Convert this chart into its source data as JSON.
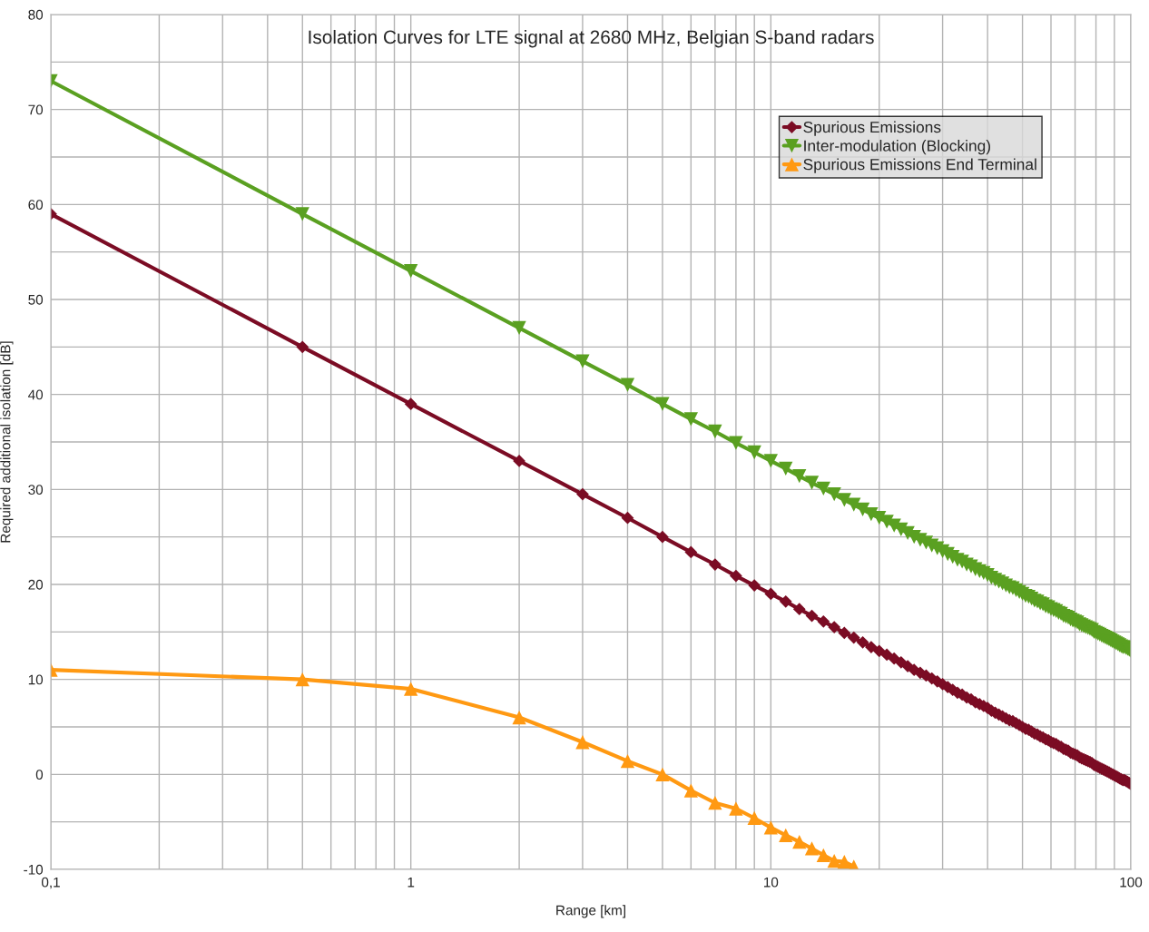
{
  "chart_data": {
    "type": "line",
    "title": "Isolation Curves for LTE signal at 2680 MHz, Belgian S-band radars",
    "xlabel": "Range [km]",
    "ylabel": "Required additional isolation [dB]",
    "log": "x",
    "xlim": [
      0.1,
      100
    ],
    "xticks": [
      {
        "value": 0.1,
        "label": "0,1"
      },
      {
        "value": 0.2,
        "label": null
      },
      {
        "value": 0.3,
        "label": null
      },
      {
        "value": 0.4,
        "label": null
      },
      {
        "value": 0.5,
        "label": null
      },
      {
        "value": 0.6,
        "label": null
      },
      {
        "value": 0.7,
        "label": null
      },
      {
        "value": 0.8,
        "label": null
      },
      {
        "value": 0.9,
        "label": null
      },
      1,
      {
        "value": 2,
        "label": null
      },
      {
        "value": 3,
        "label": null
      },
      {
        "value": 4,
        "label": null
      },
      {
        "value": 5,
        "label": null
      },
      {
        "value": 6,
        "label": null
      },
      {
        "value": 7,
        "label": null
      },
      {
        "value": 8,
        "label": null
      },
      {
        "value": 9,
        "label": null
      },
      10,
      {
        "value": 20,
        "label": null
      },
      {
        "value": 30,
        "label": null
      },
      {
        "value": 40,
        "label": null
      },
      {
        "value": 50,
        "label": null
      },
      {
        "value": 60,
        "label": null
      },
      {
        "value": 70,
        "label": null
      },
      {
        "value": 80,
        "label": null
      },
      {
        "value": 90,
        "label": null
      },
      100
    ],
    "ylim": [
      -10,
      80
    ],
    "yticks": [
      -10,
      {
        "value": -5,
        "label": null
      },
      0,
      {
        "value": 5,
        "label": null
      },
      10,
      {
        "value": 15,
        "label": null
      },
      20,
      {
        "value": 25,
        "label": null
      },
      30,
      {
        "value": 35,
        "label": null
      },
      40,
      {
        "value": 45,
        "label": null
      },
      50,
      {
        "value": 55,
        "label": null
      },
      60,
      {
        "value": 65,
        "label": null
      },
      70,
      {
        "value": 75,
        "label": null
      },
      80
    ],
    "grid": true,
    "legend": "top right",
    "line_style": "solid",
    "series": [
      {
        "name": "Spurious Emissions",
        "color": "#7b0c24",
        "marker": "diamond",
        "x": [
          0.1,
          0.5,
          1,
          2,
          3,
          4,
          5,
          6,
          7,
          8,
          9,
          10,
          11,
          12,
          13,
          14,
          15,
          16,
          17,
          18,
          19,
          20,
          21,
          22,
          23,
          24,
          25,
          26,
          27,
          28,
          29,
          30,
          31,
          32,
          33,
          34,
          35,
          36,
          37,
          38,
          39,
          40,
          41,
          42,
          43,
          44,
          45,
          46,
          47,
          48,
          49,
          50,
          51,
          52,
          53,
          54,
          55,
          56,
          57,
          58,
          59,
          60,
          61,
          62,
          63,
          64,
          65,
          66,
          67,
          68,
          69,
          70,
          71,
          72,
          73,
          74,
          75,
          76,
          77,
          78,
          79,
          80,
          81,
          82,
          83,
          84,
          85,
          86,
          87,
          88,
          89,
          90,
          91,
          92,
          93,
          94,
          95,
          96,
          97,
          98,
          99,
          100
        ],
        "values": [
          59.0,
          45.0,
          39.0,
          33.0,
          29.5,
          27.0,
          25.0,
          23.4,
          22.1,
          20.9,
          19.9,
          19.0,
          18.2,
          17.4,
          16.7,
          16.1,
          15.5,
          14.9,
          14.4,
          13.9,
          13.4,
          13.0,
          12.6,
          12.2,
          11.8,
          11.4,
          11.0,
          10.7,
          10.4,
          10.1,
          9.8,
          9.5,
          9.2,
          8.9,
          8.6,
          8.4,
          8.1,
          7.9,
          7.6,
          7.4,
          7.2,
          7.0,
          6.7,
          6.5,
          6.3,
          6.1,
          5.9,
          5.7,
          5.6,
          5.4,
          5.2,
          5.0,
          4.8,
          4.7,
          4.5,
          4.3,
          4.2,
          4.0,
          3.9,
          3.7,
          3.6,
          3.4,
          3.3,
          3.2,
          3.0,
          2.9,
          2.7,
          2.6,
          2.5,
          2.3,
          2.2,
          2.1,
          2.0,
          1.8,
          1.7,
          1.6,
          1.5,
          1.4,
          1.3,
          1.2,
          1.0,
          0.9,
          0.8,
          0.7,
          0.6,
          0.5,
          0.4,
          0.3,
          0.2,
          0.1,
          0.0,
          -0.1,
          -0.2,
          -0.3,
          -0.4,
          -0.5,
          -0.6,
          -0.6,
          -0.7,
          -0.8,
          -0.9,
          -1.0
        ]
      },
      {
        "name": "Inter-modulation (Blocking)",
        "color": "#5aa021",
        "marker": "triangle-down",
        "x": [
          0.1,
          0.5,
          1,
          2,
          3,
          4,
          5,
          6,
          7,
          8,
          9,
          10,
          11,
          12,
          13,
          14,
          15,
          16,
          17,
          18,
          19,
          20,
          21,
          22,
          23,
          24,
          25,
          26,
          27,
          28,
          29,
          30,
          31,
          32,
          33,
          34,
          35,
          36,
          37,
          38,
          39,
          40,
          41,
          42,
          43,
          44,
          45,
          46,
          47,
          48,
          49,
          50,
          51,
          52,
          53,
          54,
          55,
          56,
          57,
          58,
          59,
          60,
          61,
          62,
          63,
          64,
          65,
          66,
          67,
          68,
          69,
          70,
          71,
          72,
          73,
          74,
          75,
          76,
          77,
          78,
          79,
          80,
          81,
          82,
          83,
          84,
          85,
          86,
          87,
          88,
          89,
          90,
          91,
          92,
          93,
          94,
          95,
          96,
          97,
          98,
          99,
          100
        ],
        "values": [
          73.0,
          59.0,
          53.0,
          47.0,
          43.5,
          41.0,
          39.0,
          37.4,
          36.1,
          34.9,
          33.9,
          33.0,
          32.2,
          31.4,
          30.7,
          30.1,
          29.5,
          28.9,
          28.4,
          27.9,
          27.4,
          27.0,
          26.6,
          26.2,
          25.8,
          25.4,
          25.0,
          24.7,
          24.4,
          24.1,
          23.8,
          23.5,
          23.2,
          22.9,
          22.6,
          22.4,
          22.1,
          21.9,
          21.6,
          21.4,
          21.2,
          21.0,
          20.7,
          20.5,
          20.3,
          20.1,
          19.9,
          19.7,
          19.6,
          19.4,
          19.2,
          19.0,
          18.8,
          18.7,
          18.5,
          18.3,
          18.2,
          18.0,
          17.9,
          17.7,
          17.6,
          17.4,
          17.3,
          17.2,
          17.0,
          16.9,
          16.7,
          16.6,
          16.5,
          16.3,
          16.2,
          16.1,
          16.0,
          15.8,
          15.7,
          15.6,
          15.5,
          15.4,
          15.3,
          15.2,
          15.0,
          14.9,
          14.8,
          14.7,
          14.6,
          14.5,
          14.4,
          14.3,
          14.2,
          14.1,
          14.0,
          13.9,
          13.8,
          13.7,
          13.6,
          13.5,
          13.4,
          13.4,
          13.3,
          13.2,
          13.1,
          13.0
        ]
      },
      {
        "name": "Spurious Emissions End Terminal",
        "color": "#ff9912",
        "marker": "triangle",
        "x": [
          0.1,
          0.5,
          1,
          2,
          3,
          4,
          5,
          6,
          7,
          8,
          9,
          10,
          11,
          12,
          13,
          14,
          15,
          16,
          17
        ],
        "values": [
          11.0,
          10.0,
          9.0,
          6.0,
          3.4,
          1.4,
          0.0,
          -1.7,
          -3.0,
          -3.6,
          -4.6,
          -5.6,
          -6.4,
          -7.1,
          -7.8,
          -8.5,
          -9.1,
          -9.2,
          -9.7
        ]
      }
    ]
  }
}
